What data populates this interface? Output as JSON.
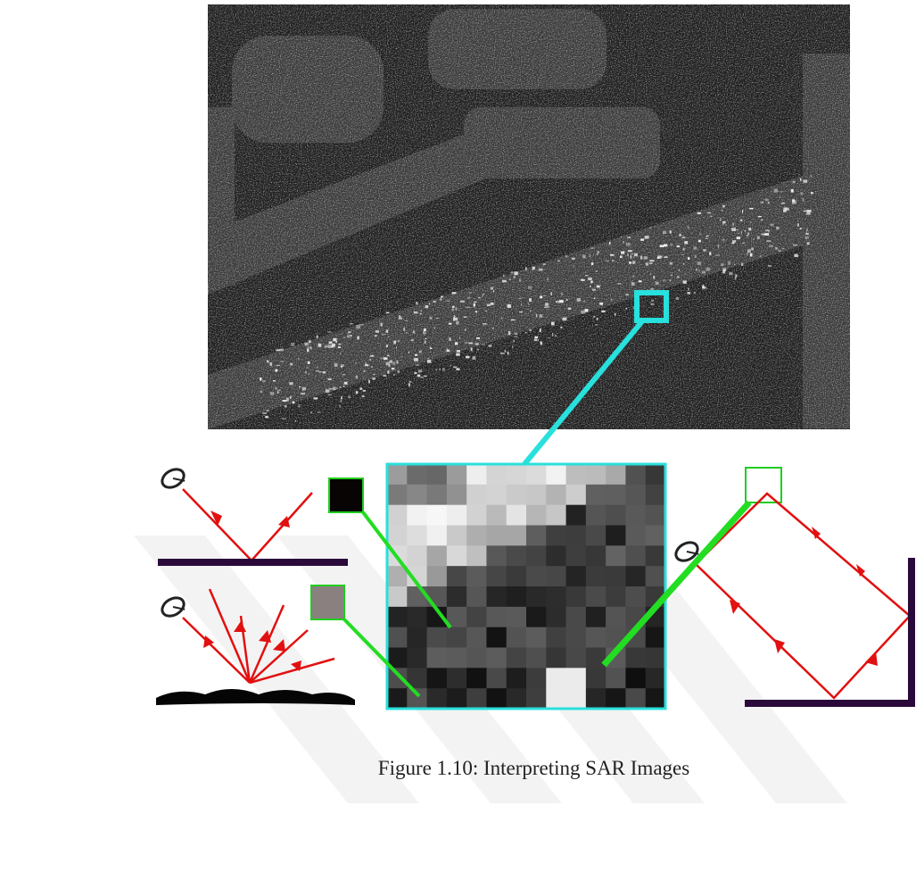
{
  "figure": {
    "caption": "Figure 1.10: Interpreting SAR Images"
  }
}
